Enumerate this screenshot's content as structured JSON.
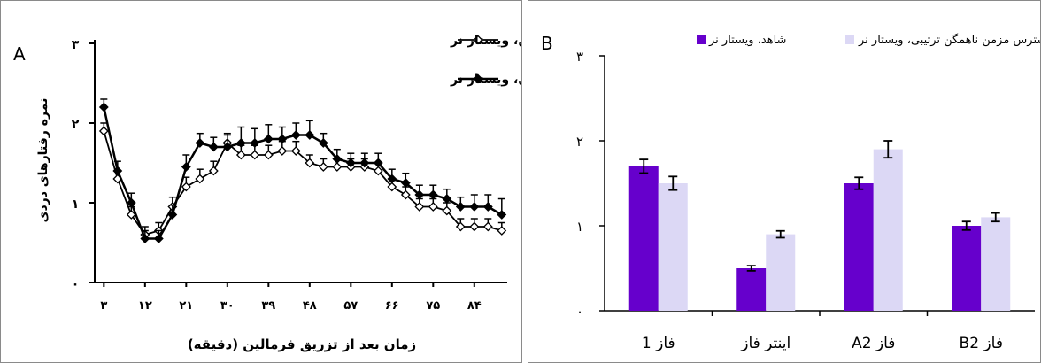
{
  "chart_data": [
    {
      "panel_label": "A",
      "type": "line",
      "xlabel": "زمان بعد از تزریق فرمالین (دقیقه)",
      "ylabel": "نمره رفتارهای دردی",
      "ylim": [
        0,
        3
      ],
      "yticks": [
        "۰",
        "۱",
        "۲",
        "۳"
      ],
      "xticks": [
        "۳",
        "۱۲",
        "۲۱",
        "۳۰",
        "۳۹",
        "۴۸",
        "۵۷",
        "۶۶",
        "۷۵",
        "۸۴"
      ],
      "xtick_values": [
        3,
        12,
        21,
        30,
        39,
        48,
        57,
        66,
        75,
        84
      ],
      "legend_position": "top-right",
      "x": [
        3,
        6,
        9,
        12,
        15,
        18,
        21,
        24,
        27,
        30,
        33,
        36,
        39,
        42,
        45,
        48,
        51,
        54,
        57,
        60,
        63,
        66,
        69,
        72,
        75,
        78,
        81,
        84,
        87,
        90
      ],
      "series": [
        {
          "name": "کنترل، ویستار نر",
          "marker": "open-diamond",
          "color": "#000000",
          "values": [
            1.9,
            1.3,
            0.85,
            0.6,
            0.65,
            0.95,
            1.2,
            1.3,
            1.4,
            1.75,
            1.6,
            1.6,
            1.6,
            1.65,
            1.65,
            1.5,
            1.45,
            1.45,
            1.45,
            1.45,
            1.4,
            1.2,
            1.1,
            0.95,
            0.95,
            0.9,
            0.7,
            0.7,
            0.7,
            0.65
          ],
          "errors": [
            0.1,
            0.1,
            0.1,
            0.1,
            0.1,
            0.12,
            0.12,
            0.12,
            0.12,
            0.12,
            0.12,
            0.12,
            0.12,
            0.12,
            0.12,
            0.1,
            0.1,
            0.1,
            0.1,
            0.1,
            0.1,
            0.1,
            0.1,
            0.1,
            0.1,
            0.1,
            0.1,
            0.1,
            0.1,
            0.1
          ]
        },
        {
          "name": "استرس مزمن ناهمگن ترتیبی، ویستار نر",
          "marker": "filled-diamond",
          "color": "#000000",
          "values": [
            2.2,
            1.4,
            1.0,
            0.55,
            0.55,
            0.85,
            1.45,
            1.75,
            1.7,
            1.7,
            1.75,
            1.75,
            1.8,
            1.8,
            1.85,
            1.85,
            1.75,
            1.55,
            1.5,
            1.5,
            1.5,
            1.3,
            1.25,
            1.1,
            1.1,
            1.05,
            0.95,
            0.95,
            0.95,
            0.85
          ],
          "errors": [
            0.1,
            0.12,
            0.12,
            0.1,
            0.1,
            0.12,
            0.15,
            0.12,
            0.12,
            0.15,
            0.2,
            0.18,
            0.18,
            0.15,
            0.15,
            0.18,
            0.12,
            0.12,
            0.12,
            0.12,
            0.12,
            0.12,
            0.12,
            0.12,
            0.12,
            0.12,
            0.12,
            0.15,
            0.15,
            0.2
          ]
        }
      ]
    },
    {
      "panel_label": "B",
      "type": "bar",
      "ylim": [
        0,
        3
      ],
      "yticks": [
        "۰",
        "۱",
        "۲",
        "۳"
      ],
      "categories": [
        "فاز 1",
        "اینتر فاز",
        "فاز A2",
        "فاز B2"
      ],
      "legend_position": "top",
      "series": [
        {
          "name": "شاهد، ویستار نر",
          "color": "#6600cc",
          "values": [
            1.7,
            0.5,
            1.5,
            1.0
          ],
          "errors": [
            0.08,
            0.03,
            0.07,
            0.05
          ]
        },
        {
          "name": "استرس مزمن ناهمگن ترتیبی، ویستار نر",
          "color": "#dcd8f5",
          "values": [
            1.5,
            0.9,
            1.9,
            1.1
          ],
          "errors": [
            0.08,
            0.04,
            0.1,
            0.05
          ]
        }
      ]
    }
  ]
}
